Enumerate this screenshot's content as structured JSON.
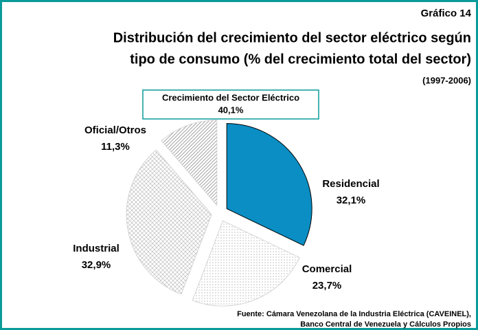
{
  "chart_data": {
    "type": "pie",
    "kicker": "Gráfico 14",
    "title_lines": [
      "Distribución  del crecimiento del sector eléctrico según",
      "tipo de consumo (% del crecimiento total del sector)"
    ],
    "subtitle": "(1997-2006)",
    "annotation": {
      "text": "Crecimiento del Sector Eléctrico",
      "label": "40,1%"
    },
    "categories": [
      "Residencial",
      "Comercial",
      "Industrial",
      "Oficial/Otros"
    ],
    "values": [
      32.1,
      23.7,
      32.9,
      11.3
    ],
    "value_labels": [
      "32,1%",
      "23,7%",
      "32,9%",
      "11,3%"
    ],
    "colors": [
      "#0a8ec4",
      "#bdbdbd",
      "#bdbdbd",
      "#9a9a9a"
    ],
    "patterns": [
      "solid",
      "dots",
      "crosshatch",
      "diagonal"
    ],
    "source_lines": [
      "Fuente: Cámara Venezolana de la Industria Eléctrica (CAVEINEL),",
      "Banco Central de Venezuela y Cálculos Propios"
    ]
  }
}
